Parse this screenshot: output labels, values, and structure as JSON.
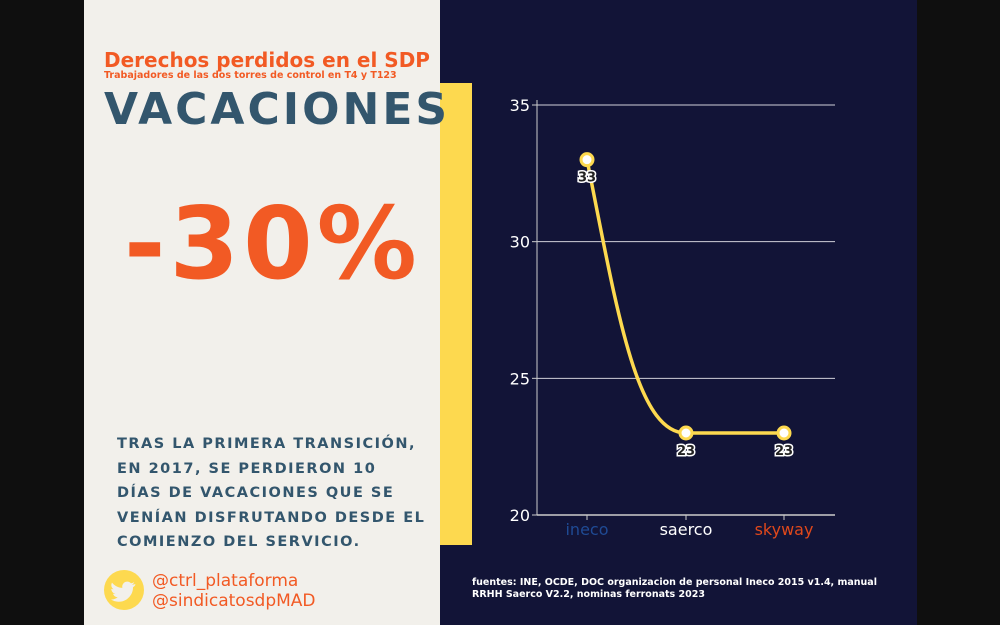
{
  "header": {
    "title": "Derechos perdidos en el SDP",
    "subtitle": "Trabajadores de las dos torres de control en T4 y T123",
    "topic": "VACACIONES"
  },
  "headline_value": "-30%",
  "description": "TRAS LA PRIMERA TRANSICIÓN, EN 2017, SE PERDIERON 10 DÍAS DE VACACIONES QUE SE VENÍAN DISFRUTANDO DESDE EL COMIENZO DEL SERVICIO.",
  "social": {
    "handle1": "@ctrl_plataforma",
    "handle2": "@sindicatosdpMAD"
  },
  "sources": "fuentes: INE, OCDE, DOC organizacion de personal Ineco 2015 v1.4, manual RRHH Saerco V2.2, nominas ferronats 2023",
  "chart_data": {
    "type": "line",
    "categories": [
      "ineco",
      "saerco",
      "skyway"
    ],
    "category_colors": [
      "#1f4a94",
      "#ffffff",
      "#e0481b"
    ],
    "values": [
      33,
      23,
      23
    ],
    "data_labels": [
      "33",
      "23",
      "23"
    ],
    "ylim": [
      20,
      35
    ],
    "yticks": [
      "20",
      "25",
      "30",
      "35"
    ],
    "grid": true,
    "line_color": "#fdd94f"
  }
}
